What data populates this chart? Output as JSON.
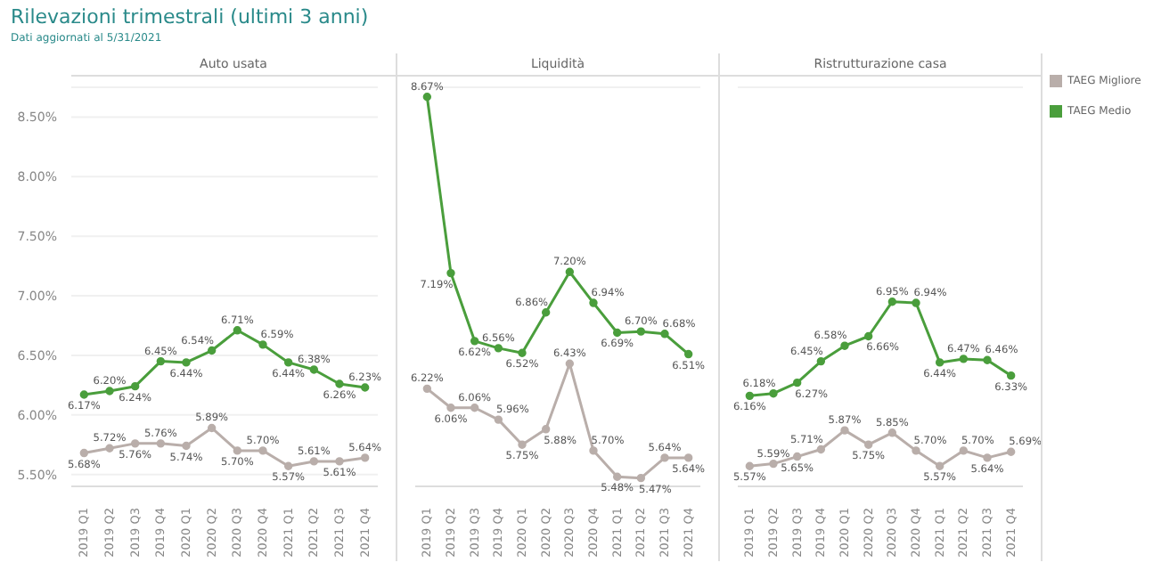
{
  "chart_data": [
    {
      "type": "line",
      "title": "Rilevazioni trimestrali (ultimi 3 anni)",
      "subtitle": "Dati aggiornati al 5/31/2021",
      "xlabel": "Auto usata",
      "categories": [
        "2019 Q1",
        "2019 Q2",
        "2019 Q3",
        "2019 Q4",
        "2020 Q1",
        "2020 Q2",
        "2020 Q3",
        "2020 Q4",
        "2021 Q1",
        "2021 Q2",
        "2021 Q3",
        "2021 Q4"
      ],
      "series": [
        {
          "name": "TAEG Migliore",
          "color": "#b9aeaa",
          "values": [
            5.68,
            5.72,
            5.76,
            5.76,
            5.74,
            5.89,
            5.7,
            5.7,
            5.57,
            5.61,
            5.61,
            5.64
          ],
          "value_labels": [
            "5.68%",
            "5.72%",
            "5.76%",
            "5.76%",
            "5.74%",
            "5.89%",
            "5.70%",
            "5.70%",
            "5.57%",
            "5.61%",
            "5.61%",
            "5.64%"
          ]
        },
        {
          "name": "TAEG Medio",
          "color": "#4a9e3c",
          "values": [
            6.17,
            6.2,
            6.24,
            6.45,
            6.44,
            6.54,
            6.71,
            6.59,
            6.44,
            6.38,
            6.26,
            6.23
          ],
          "value_labels": [
            "6.17%",
            "6.20%",
            "6.24%",
            "6.45%",
            "6.44%",
            "6.54%",
            "6.71%",
            "6.59%",
            "6.44%",
            "6.38%",
            "6.26%",
            "6.23%"
          ]
        }
      ],
      "ylim": [
        5.4,
        8.75
      ],
      "yticks": [
        {
          "value": 5.5,
          "label": "5.50%"
        },
        {
          "value": 6,
          "label": "6.00%"
        },
        {
          "value": 6.5,
          "label": "6.50%"
        },
        {
          "value": 7,
          "label": "7.00%"
        },
        {
          "value": 7.5,
          "label": "7.50%"
        },
        {
          "value": 8,
          "label": "8.00%"
        },
        {
          "value": 8.5,
          "label": "8.50%"
        }
      ],
      "grid": "y",
      "marker": "circle",
      "line_style": "solid",
      "legend": "right"
    },
    {
      "type": "line",
      "xlabel": "Liquidità",
      "categories": [
        "2019 Q1",
        "2019 Q2",
        "2019 Q3",
        "2019 Q4",
        "2020 Q1",
        "2020 Q2",
        "2020 Q3",
        "2020 Q4",
        "2021 Q1",
        "2021 Q2",
        "2021 Q3",
        "2021 Q4"
      ],
      "series": [
        {
          "color": "#b9aeaa",
          "values": [
            6.22,
            6.06,
            6.06,
            5.96,
            5.75,
            5.88,
            6.43,
            5.7,
            5.48,
            5.47,
            5.64,
            5.64
          ],
          "value_labels": [
            "6.22%",
            "6.06%",
            "6.06%",
            "5.96%",
            "5.75%",
            "5.88%",
            "6.43%",
            "5.70%",
            "5.48%",
            "5.47%",
            "5.64%",
            "5.64%"
          ]
        },
        {
          "color": "#4a9e3c",
          "values": [
            8.67,
            7.19,
            6.62,
            6.56,
            6.52,
            6.86,
            7.2,
            6.94,
            6.69,
            6.7,
            6.68,
            6.51
          ],
          "value_labels": [
            "8.67%",
            "7.19%",
            "6.62%",
            "6.56%",
            "6.52%",
            "6.86%",
            "7.20%",
            "6.94%",
            "6.69%",
            "6.70%",
            "6.68%",
            "6.51%"
          ]
        }
      ],
      "ylim": [
        5.4,
        8.75
      ],
      "yticks": [
        {
          "value": 5.5,
          "label": null
        },
        {
          "value": 6,
          "label": null
        },
        {
          "value": 6.5,
          "label": null
        },
        {
          "value": 7,
          "label": null
        },
        {
          "value": 7.5,
          "label": null
        },
        {
          "value": 8,
          "label": null
        },
        {
          "value": 8.5,
          "label": null
        }
      ],
      "grid": "y",
      "marker": "circle",
      "line_style": "solid",
      "tick_labels": "x"
    },
    {
      "type": "line",
      "xlabel": "Ristrutturazione casa",
      "categories": [
        "2019 Q1",
        "2019 Q2",
        "2019 Q3",
        "2019 Q4",
        "2020 Q1",
        "2020 Q2",
        "2020 Q3",
        "2020 Q4",
        "2021 Q1",
        "2021 Q2",
        "2021 Q3",
        "2021 Q4"
      ],
      "series": [
        {
          "color": "#b9aeaa",
          "values": [
            5.57,
            5.59,
            5.65,
            5.71,
            5.87,
            5.75,
            5.85,
            5.7,
            5.57,
            5.7,
            5.64,
            5.69
          ],
          "value_labels": [
            "5.57%",
            "5.59%",
            "5.65%",
            "5.71%",
            "5.87%",
            "5.75%",
            "5.85%",
            "5.70%",
            "5.57%",
            "5.70%",
            "5.64%",
            "5.69%"
          ]
        },
        {
          "color": "#4a9e3c",
          "values": [
            6.16,
            6.18,
            6.27,
            6.45,
            6.58,
            6.66,
            6.95,
            6.94,
            6.44,
            6.47,
            6.46,
            6.33
          ],
          "value_labels": [
            "6.16%",
            "6.18%",
            "6.27%",
            "6.45%",
            "6.58%",
            "6.66%",
            "6.95%",
            "6.94%",
            "6.44%",
            "6.47%",
            "6.46%",
            "6.33%"
          ]
        }
      ],
      "ylim": [
        5.4,
        8.75
      ],
      "yticks": [
        {
          "value": 5.5,
          "label": null
        },
        {
          "value": 6,
          "label": null
        },
        {
          "value": 6.5,
          "label": null
        },
        {
          "value": 7,
          "label": null
        },
        {
          "value": 7.5,
          "label": null
        },
        {
          "value": 8,
          "label": null
        },
        {
          "value": 8.5,
          "label": null
        }
      ],
      "grid": "y",
      "marker": "circle",
      "line_style": "solid",
      "tick_labels": "x"
    }
  ]
}
